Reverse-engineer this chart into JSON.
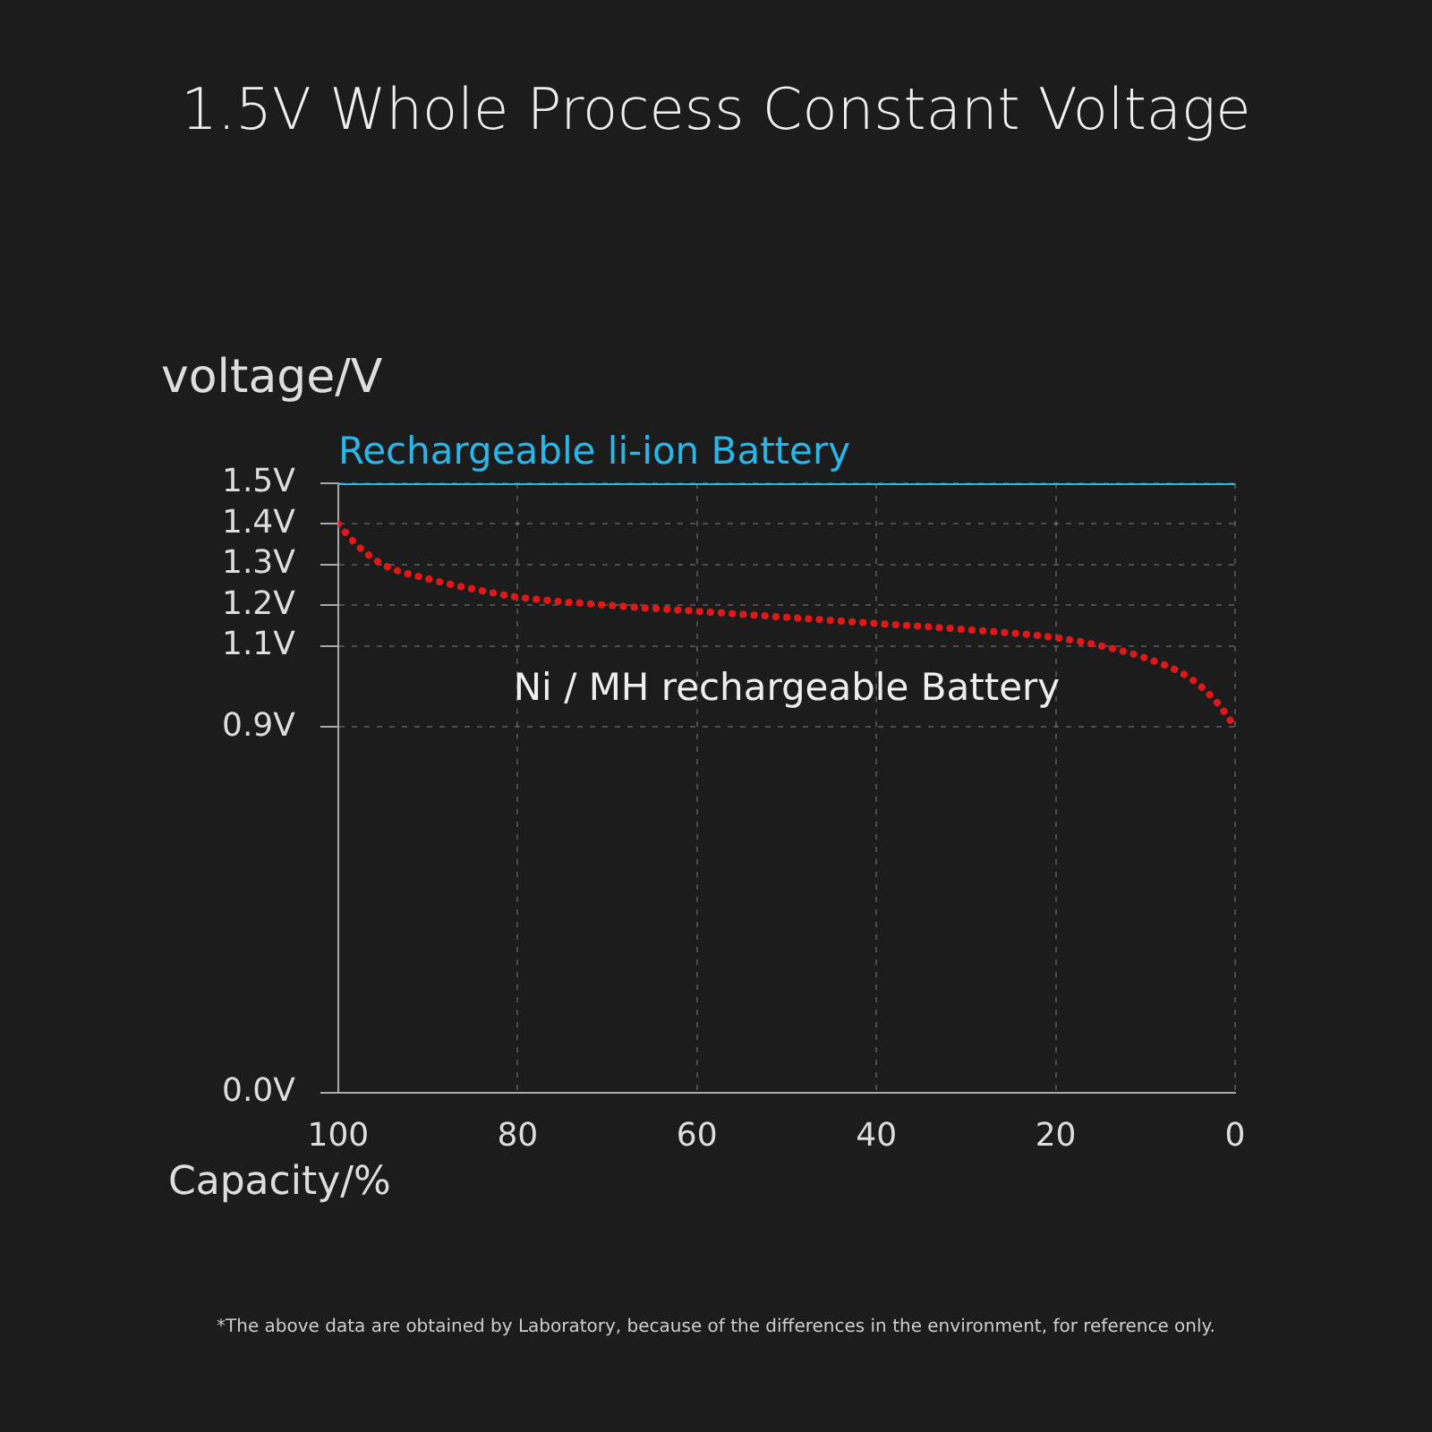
{
  "chart_data": {
    "type": "line",
    "title": "1.5V Whole Process Constant Voltage",
    "xlabel": "Capacity/%",
    "ylabel": "voltage/V",
    "xlim": [
      100,
      0
    ],
    "xticks": [
      100,
      80,
      60,
      40,
      20,
      0
    ],
    "ylim": [
      0,
      1.5
    ],
    "yticks": [
      {
        "value": 0,
        "label": "0.0V"
      },
      {
        "value": 0.9,
        "label": "0.9V"
      },
      {
        "value": 1.1,
        "label": "1.1V"
      },
      {
        "value": 1.2,
        "label": "1.2V"
      },
      {
        "value": 1.3,
        "label": "1.3V"
      },
      {
        "value": 1.4,
        "label": "1.4V"
      },
      {
        "value": 1.5,
        "label": "1.5V"
      }
    ],
    "grid": true,
    "legend": false,
    "marker": "none",
    "series": [
      {
        "name": "Rechargeable li-ion Battery",
        "color": "#29b6e8",
        "line_style": "solid",
        "x": [
          100,
          0
        ],
        "values": [
          1.5,
          1.5
        ]
      },
      {
        "name": "Ni / MH rechargeable Battery",
        "color": "#e01818",
        "line_style": "dotted",
        "x": [
          100,
          98,
          95,
          90,
          85,
          80,
          70,
          60,
          50,
          40,
          30,
          20,
          15,
          10,
          5,
          2,
          0
        ],
        "values": [
          1.4,
          1.35,
          1.3,
          1.265,
          1.24,
          1.22,
          1.2,
          1.185,
          1.17,
          1.155,
          1.14,
          1.12,
          1.1,
          1.07,
          1.02,
          0.96,
          0.9
        ]
      }
    ],
    "annotations": [
      "*The above data are obtained by Laboratory, because of the differences in the environment, for reference only."
    ]
  }
}
